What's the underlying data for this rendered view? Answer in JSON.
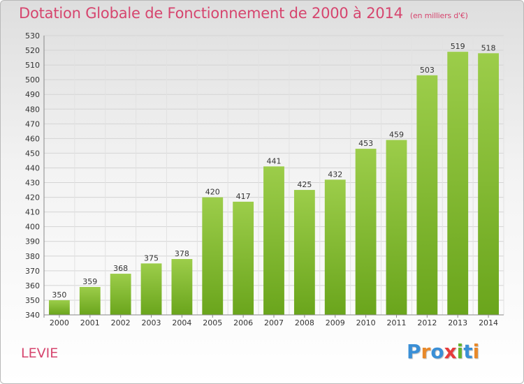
{
  "title": "Dotation Globale de Fonctionnement de 2000 à 2014",
  "subtitle": "(en milliers d'€)",
  "commune": "LEVIE",
  "logo": {
    "letters": [
      "P",
      "r",
      "o",
      "x",
      "i",
      "t",
      "i"
    ],
    "colors": [
      "#3a8fd6",
      "#e8892a",
      "#3a8fd6",
      "#e63c3c",
      "#66b32e",
      "#3a8fd6",
      "#e8892a"
    ]
  },
  "chart_data": {
    "type": "bar",
    "categories": [
      "2000",
      "2001",
      "2002",
      "2003",
      "2004",
      "2005",
      "2006",
      "2007",
      "2008",
      "2009",
      "2010",
      "2011",
      "2012",
      "2013",
      "2014"
    ],
    "values": [
      350,
      359,
      368,
      375,
      378,
      420,
      417,
      441,
      425,
      432,
      453,
      459,
      503,
      519,
      518
    ],
    "ylim": [
      340,
      530
    ],
    "ytick_step": 10,
    "grid": true,
    "bar_color": "#7fbf2a"
  }
}
